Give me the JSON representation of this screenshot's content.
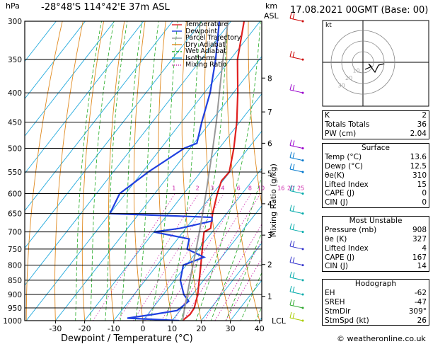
{
  "header": {
    "hpa_label": "hPa",
    "location": "-28°48'S  114°42'E  37m  ASL",
    "km_label": "km",
    "asl_label": "ASL",
    "datetime": "17.08.2021  00GMT  (Base: 00)"
  },
  "footer": {
    "credit": "© weatheronline.co.uk"
  },
  "chart_data": {
    "type": "line",
    "xlabel": "Dewpoint / Temperature (°C)",
    "ylabel": "hPa",
    "mixing_ratio_label": "Mixing Ratio (g/kg)",
    "xlim": [
      -40,
      40
    ],
    "ylim": [
      1000,
      300
    ],
    "pressure_ticks": [
      300,
      350,
      400,
      450,
      500,
      550,
      600,
      650,
      700,
      750,
      800,
      850,
      900,
      950,
      1000
    ],
    "temp_ticks": [
      -30,
      -20,
      -10,
      0,
      10,
      20,
      30,
      40
    ],
    "km_ticks": [
      {
        "km": "1",
        "p": 907
      },
      {
        "km": "2",
        "p": 798
      },
      {
        "km": "3",
        "p": 709
      },
      {
        "km": "4",
        "p": 625
      },
      {
        "km": "5",
        "p": 553
      },
      {
        "km": "6",
        "p": 490
      },
      {
        "km": "7",
        "p": 432
      },
      {
        "km": "8",
        "p": 377
      }
    ],
    "lcl_label": "LCL",
    "lcl_p": 1000,
    "mixing_ratio_values": [
      "1",
      "2",
      "3",
      "4",
      "6",
      "8",
      "10",
      "16",
      "20",
      "25"
    ],
    "legend": [
      "Temperature",
      "Dewpoint",
      "Parcel Trajectory",
      "Dry Adiabat",
      "Wet Adiabat",
      "Isotherm",
      "Mixing Ratio"
    ],
    "series": [
      {
        "name": "Temperature",
        "color": "#e02020",
        "points": [
          [
            1000,
            13.6
          ],
          [
            975,
            14.5
          ],
          [
            950,
            14.2
          ],
          [
            925,
            13.0
          ],
          [
            900,
            11.8
          ],
          [
            850,
            8.5
          ],
          [
            800,
            5.0
          ],
          [
            750,
            1.2
          ],
          [
            700,
            -2.8
          ],
          [
            690,
            -1.5
          ],
          [
            650,
            -4.8
          ],
          [
            600,
            -8.5
          ],
          [
            570,
            -10.5
          ],
          [
            550,
            -10.2
          ],
          [
            520,
            -13.0
          ],
          [
            500,
            -15.0
          ],
          [
            450,
            -21.0
          ],
          [
            400,
            -28.5
          ],
          [
            350,
            -37.5
          ],
          [
            300,
            -45.5
          ]
        ]
      },
      {
        "name": "Dewpoint",
        "color": "#2040e0",
        "points": [
          [
            1000,
            12.5
          ],
          [
            990,
            -6.0
          ],
          [
            975,
            2.0
          ],
          [
            960,
            9.0
          ],
          [
            950,
            9.5
          ],
          [
            925,
            10.5
          ],
          [
            900,
            7.0
          ],
          [
            850,
            2.0
          ],
          [
            800,
            -1.0
          ],
          [
            775,
            4.0
          ],
          [
            750,
            -4.0
          ],
          [
            720,
            -6.0
          ],
          [
            700,
            -20.0
          ],
          [
            690,
            -12.0
          ],
          [
            670,
            -3.0
          ],
          [
            660,
            -4.0
          ],
          [
            650,
            -40.0
          ],
          [
            600,
            -42.0
          ],
          [
            550,
            -38.0
          ],
          [
            500,
            -32.0
          ],
          [
            490,
            -29.0
          ],
          [
            450,
            -33.0
          ],
          [
            400,
            -38.0
          ],
          [
            350,
            -45.0
          ],
          [
            300,
            -54.0
          ]
        ]
      },
      {
        "name": "Parcel Trajectory",
        "color": "#999999",
        "points": [
          [
            1000,
            13.6
          ],
          [
            950,
            10.9
          ],
          [
            900,
            8.2
          ],
          [
            850,
            5.3
          ],
          [
            800,
            2.3
          ],
          [
            750,
            -0.9
          ],
          [
            700,
            -4.4
          ],
          [
            650,
            -8.2
          ],
          [
            600,
            -12.4
          ],
          [
            550,
            -17.1
          ],
          [
            500,
            -22.2
          ],
          [
            450,
            -28.0
          ],
          [
            400,
            -34.8
          ],
          [
            350,
            -42.5
          ],
          [
            300,
            -51.0
          ]
        ]
      }
    ],
    "hodograph": {
      "label": "kt",
      "ring_labels": [
        "10",
        "20",
        "30"
      ]
    }
  },
  "indices": {
    "k_label": "K",
    "k": "2",
    "tt_label": "Totals Totals",
    "tt": "36",
    "pw_label": "PW (cm)",
    "pw": "2.04"
  },
  "surface": {
    "title": "Surface",
    "temp_label": "Temp (°C)",
    "temp": "13.6",
    "dewp_label": "Dewp (°C)",
    "dewp": "12.5",
    "theta_label": "θe(K)",
    "theta": "310",
    "li_label": "Lifted Index",
    "li": "15",
    "cape_label": "CAPE (J)",
    "cape": "0",
    "cin_label": "CIN (J)",
    "cin": "0"
  },
  "most_unstable": {
    "title": "Most Unstable",
    "pres_label": "Pressure (mb)",
    "pres": "908",
    "theta_label": "θe (K)",
    "theta": "327",
    "li_label": "Lifted Index",
    "li": "4",
    "cape_label": "CAPE (J)",
    "cape": "167",
    "cin_label": "CIN (J)",
    "cin": "14"
  },
  "hodograph_table": {
    "title": "Hodograph",
    "eh_label": "EH",
    "eh": "-62",
    "sreh_label": "SREH",
    "sreh": "-47",
    "stmdir_label": "StmDir",
    "stmdir": "309°",
    "stmspd_label": "StmSpd (kt)",
    "stmspd": "26"
  }
}
